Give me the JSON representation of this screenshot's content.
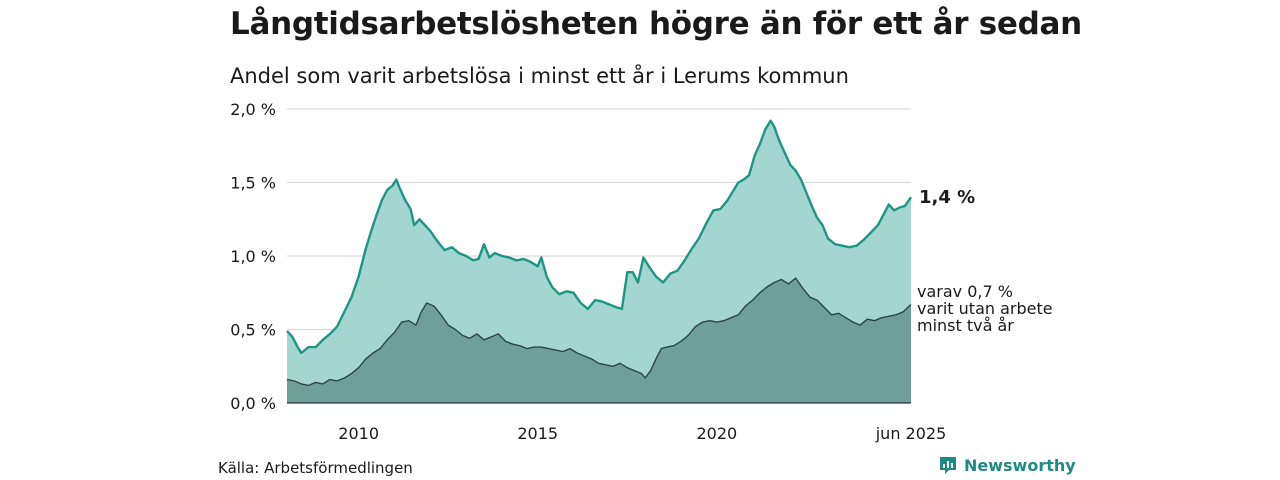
{
  "title": "Långtidsarbetslösheten högre än för ett år sedan",
  "subtitle": "Andel som varit arbetslösa i minst ett år i Lerums kommun",
  "source": "Källa: Arbetsförmedlingen",
  "brand": {
    "name": "Newsworthy",
    "icon": "newsworthy-logo-icon"
  },
  "colors": {
    "total_fill": "#a3d6d0",
    "total_line": "#1e9584",
    "longterm_fill": "#6f9f9a",
    "longterm_line": "#2d4645",
    "grid": "#d9d9d9",
    "axis": "#333333",
    "brand": "#1f8a84"
  },
  "chart_data": {
    "type": "area",
    "ylim": [
      0,
      2.0
    ],
    "xlim": [
      2008.0,
      2025.42
    ],
    "y_ticks": [
      {
        "value": 0.0,
        "label": "0,0 %"
      },
      {
        "value": 0.5,
        "label": "0,5 %"
      },
      {
        "value": 1.0,
        "label": "1,0 %"
      },
      {
        "value": 1.5,
        "label": "1,5 %"
      },
      {
        "value": 2.0,
        "label": "2,0 %"
      }
    ],
    "x_ticks": [
      {
        "value": 2010,
        "label": "2010"
      },
      {
        "value": 2015,
        "label": "2015"
      },
      {
        "value": 2020,
        "label": "2020"
      },
      {
        "value": 2025.42,
        "label": "jun 2025"
      }
    ],
    "grid": true,
    "series": [
      {
        "end_label": "1,4 %",
        "points": [
          [
            2008.0,
            0.49
          ],
          [
            2008.15,
            0.45
          ],
          [
            2008.3,
            0.38
          ],
          [
            2008.4,
            0.34
          ],
          [
            2008.6,
            0.38
          ],
          [
            2008.8,
            0.38
          ],
          [
            2009.0,
            0.43
          ],
          [
            2009.2,
            0.47
          ],
          [
            2009.4,
            0.52
          ],
          [
            2009.6,
            0.62
          ],
          [
            2009.8,
            0.72
          ],
          [
            2010.0,
            0.86
          ],
          [
            2010.2,
            1.05
          ],
          [
            2010.35,
            1.17
          ],
          [
            2010.5,
            1.28
          ],
          [
            2010.65,
            1.38
          ],
          [
            2010.8,
            1.45
          ],
          [
            2010.95,
            1.48
          ],
          [
            2011.05,
            1.52
          ],
          [
            2011.15,
            1.46
          ],
          [
            2011.3,
            1.38
          ],
          [
            2011.45,
            1.32
          ],
          [
            2011.55,
            1.21
          ],
          [
            2011.7,
            1.25
          ],
          [
            2011.85,
            1.21
          ],
          [
            2012.0,
            1.17
          ],
          [
            2012.2,
            1.1
          ],
          [
            2012.4,
            1.04
          ],
          [
            2012.6,
            1.06
          ],
          [
            2012.8,
            1.02
          ],
          [
            2013.0,
            1.0
          ],
          [
            2013.2,
            0.97
          ],
          [
            2013.35,
            0.98
          ],
          [
            2013.5,
            1.08
          ],
          [
            2013.65,
            0.99
          ],
          [
            2013.8,
            1.02
          ],
          [
            2014.0,
            1.0
          ],
          [
            2014.2,
            0.99
          ],
          [
            2014.4,
            0.97
          ],
          [
            2014.6,
            0.98
          ],
          [
            2014.8,
            0.96
          ],
          [
            2015.0,
            0.93
          ],
          [
            2015.1,
            0.99
          ],
          [
            2015.25,
            0.86
          ],
          [
            2015.4,
            0.79
          ],
          [
            2015.6,
            0.74
          ],
          [
            2015.8,
            0.76
          ],
          [
            2016.0,
            0.75
          ],
          [
            2016.2,
            0.68
          ],
          [
            2016.4,
            0.64
          ],
          [
            2016.6,
            0.7
          ],
          [
            2016.8,
            0.69
          ],
          [
            2017.0,
            0.67
          ],
          [
            2017.2,
            0.65
          ],
          [
            2017.35,
            0.64
          ],
          [
            2017.5,
            0.89
          ],
          [
            2017.65,
            0.89
          ],
          [
            2017.8,
            0.82
          ],
          [
            2017.95,
            0.99
          ],
          [
            2018.1,
            0.93
          ],
          [
            2018.3,
            0.86
          ],
          [
            2018.5,
            0.82
          ],
          [
            2018.7,
            0.88
          ],
          [
            2018.9,
            0.9
          ],
          [
            2019.1,
            0.97
          ],
          [
            2019.3,
            1.05
          ],
          [
            2019.5,
            1.12
          ],
          [
            2019.7,
            1.22
          ],
          [
            2019.9,
            1.31
          ],
          [
            2020.1,
            1.32
          ],
          [
            2020.3,
            1.38
          ],
          [
            2020.45,
            1.44
          ],
          [
            2020.6,
            1.5
          ],
          [
            2020.75,
            1.52
          ],
          [
            2020.9,
            1.55
          ],
          [
            2021.05,
            1.68
          ],
          [
            2021.2,
            1.76
          ],
          [
            2021.35,
            1.86
          ],
          [
            2021.5,
            1.92
          ],
          [
            2021.6,
            1.88
          ],
          [
            2021.75,
            1.78
          ],
          [
            2021.9,
            1.7
          ],
          [
            2022.05,
            1.62
          ],
          [
            2022.2,
            1.58
          ],
          [
            2022.35,
            1.52
          ],
          [
            2022.5,
            1.43
          ],
          [
            2022.65,
            1.34
          ],
          [
            2022.8,
            1.26
          ],
          [
            2022.95,
            1.21
          ],
          [
            2023.1,
            1.12
          ],
          [
            2023.3,
            1.08
          ],
          [
            2023.5,
            1.07
          ],
          [
            2023.7,
            1.06
          ],
          [
            2023.9,
            1.07
          ],
          [
            2024.1,
            1.11
          ],
          [
            2024.3,
            1.16
          ],
          [
            2024.5,
            1.21
          ],
          [
            2024.65,
            1.28
          ],
          [
            2024.8,
            1.35
          ],
          [
            2024.95,
            1.31
          ],
          [
            2025.1,
            1.33
          ],
          [
            2025.25,
            1.34
          ],
          [
            2025.42,
            1.4
          ]
        ]
      },
      {
        "end_label_lines": [
          "varav 0,7 %",
          "varit utan arbete",
          "minst två år"
        ],
        "points": [
          [
            2008.0,
            0.16
          ],
          [
            2008.2,
            0.15
          ],
          [
            2008.4,
            0.13
          ],
          [
            2008.6,
            0.12
          ],
          [
            2008.8,
            0.14
          ],
          [
            2009.0,
            0.13
          ],
          [
            2009.2,
            0.16
          ],
          [
            2009.4,
            0.15
          ],
          [
            2009.6,
            0.17
          ],
          [
            2009.8,
            0.2
          ],
          [
            2010.0,
            0.24
          ],
          [
            2010.2,
            0.3
          ],
          [
            2010.4,
            0.34
          ],
          [
            2010.6,
            0.37
          ],
          [
            2010.8,
            0.43
          ],
          [
            2011.0,
            0.48
          ],
          [
            2011.2,
            0.55
          ],
          [
            2011.4,
            0.56
          ],
          [
            2011.6,
            0.53
          ],
          [
            2011.75,
            0.62
          ],
          [
            2011.9,
            0.68
          ],
          [
            2012.1,
            0.66
          ],
          [
            2012.3,
            0.6
          ],
          [
            2012.5,
            0.53
          ],
          [
            2012.7,
            0.5
          ],
          [
            2012.9,
            0.46
          ],
          [
            2013.1,
            0.44
          ],
          [
            2013.3,
            0.47
          ],
          [
            2013.5,
            0.43
          ],
          [
            2013.7,
            0.45
          ],
          [
            2013.9,
            0.47
          ],
          [
            2014.1,
            0.42
          ],
          [
            2014.3,
            0.4
          ],
          [
            2014.5,
            0.39
          ],
          [
            2014.7,
            0.37
          ],
          [
            2014.9,
            0.38
          ],
          [
            2015.1,
            0.38
          ],
          [
            2015.3,
            0.37
          ],
          [
            2015.5,
            0.36
          ],
          [
            2015.7,
            0.35
          ],
          [
            2015.9,
            0.37
          ],
          [
            2016.1,
            0.34
          ],
          [
            2016.3,
            0.32
          ],
          [
            2016.5,
            0.3
          ],
          [
            2016.7,
            0.27
          ],
          [
            2016.9,
            0.26
          ],
          [
            2017.1,
            0.25
          ],
          [
            2017.3,
            0.27
          ],
          [
            2017.5,
            0.24
          ],
          [
            2017.7,
            0.22
          ],
          [
            2017.9,
            0.2
          ],
          [
            2018.0,
            0.17
          ],
          [
            2018.15,
            0.22
          ],
          [
            2018.3,
            0.3
          ],
          [
            2018.45,
            0.37
          ],
          [
            2018.6,
            0.38
          ],
          [
            2018.8,
            0.39
          ],
          [
            2019.0,
            0.42
          ],
          [
            2019.2,
            0.46
          ],
          [
            2019.4,
            0.52
          ],
          [
            2019.6,
            0.55
          ],
          [
            2019.8,
            0.56
          ],
          [
            2020.0,
            0.55
          ],
          [
            2020.2,
            0.56
          ],
          [
            2020.4,
            0.58
          ],
          [
            2020.6,
            0.6
          ],
          [
            2020.8,
            0.66
          ],
          [
            2021.0,
            0.7
          ],
          [
            2021.2,
            0.75
          ],
          [
            2021.4,
            0.79
          ],
          [
            2021.6,
            0.82
          ],
          [
            2021.8,
            0.84
          ],
          [
            2022.0,
            0.81
          ],
          [
            2022.2,
            0.85
          ],
          [
            2022.4,
            0.78
          ],
          [
            2022.6,
            0.72
          ],
          [
            2022.8,
            0.7
          ],
          [
            2023.0,
            0.65
          ],
          [
            2023.2,
            0.6
          ],
          [
            2023.4,
            0.61
          ],
          [
            2023.6,
            0.58
          ],
          [
            2023.8,
            0.55
          ],
          [
            2024.0,
            0.53
          ],
          [
            2024.2,
            0.57
          ],
          [
            2024.4,
            0.56
          ],
          [
            2024.6,
            0.58
          ],
          [
            2024.8,
            0.59
          ],
          [
            2025.0,
            0.6
          ],
          [
            2025.2,
            0.62
          ],
          [
            2025.42,
            0.67
          ]
        ]
      }
    ]
  }
}
